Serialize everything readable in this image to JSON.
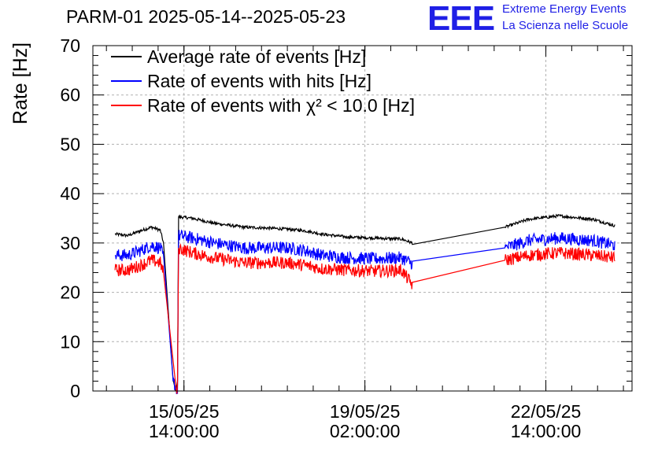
{
  "header": {
    "title": "PARM-01 2025-05-14--2025-05-23",
    "logo_text": "EEE",
    "logo_line1": "Extreme Energy Events",
    "logo_line2": "La Scienza nelle Scuole"
  },
  "colors": {
    "average": "#000000",
    "hits": "#0000ff",
    "chi2": "#ff0000",
    "grid": "#b0b0b0",
    "logo": "#1f1fe6"
  },
  "chart_data": {
    "type": "line",
    "ylabel": "Rate [Hz]",
    "xlabel": "",
    "ylim": [
      0,
      70
    ],
    "xlim": [
      "2025-05-13T19:43:00",
      "2025-05-24T06:00:00"
    ],
    "grid": true,
    "legend_position": "top-left",
    "y_ticks": [
      0,
      10,
      20,
      30,
      40,
      50,
      60,
      70
    ],
    "x_ticks": [
      {
        "x": "2025-05-15T14:00:00",
        "line1": "15/05/25",
        "line2": "14:00:00"
      },
      {
        "x": "2025-05-19T02:00:00",
        "line1": "19/05/25",
        "line2": "02:00:00"
      },
      {
        "x": "2025-05-22T14:00:00",
        "line1": "22/05/25",
        "line2": "14:00:00"
      }
    ],
    "series": [
      {
        "name": "Average rate of events [Hz]",
        "color_key": "average",
        "noise": 0.3,
        "x": [
          "2025-05-14T06:00:00",
          "2025-05-14T12:00:00",
          "2025-05-14T18:00:00",
          "2025-05-14T23:00:00",
          "2025-05-15T03:00:00",
          "2025-05-15T04:30:00",
          "2025-05-15T09:00:00",
          "2025-05-15T10:15:00",
          "2025-05-15T11:00:00",
          "2025-05-15T11:30:00",
          "2025-05-15T18:00:00",
          "2025-05-16T04:00:00",
          "2025-05-16T18:00:00",
          "2025-05-17T06:00:00",
          "2025-05-17T14:00:00",
          "2025-05-17T22:00:00",
          "2025-05-18T06:00:00",
          "2025-05-18T18:00:00",
          "2025-05-19T06:00:00",
          "2025-05-19T19:00:00",
          "2025-05-20T00:00:00",
          "2025-05-21T19:00:00",
          "2025-05-22T06:00:00",
          "2025-05-22T20:00:00",
          "2025-05-23T12:00:00",
          "2025-05-23T22:00:00"
        ],
        "y": [
          31.8,
          31.5,
          32.5,
          33.2,
          32.6,
          30.0,
          2.0,
          0,
          2.0,
          35.3,
          35.0,
          34.0,
          33.2,
          33.0,
          32.8,
          32.5,
          31.8,
          31.2,
          31.0,
          30.8,
          30.0,
          33.2,
          34.8,
          35.5,
          34.8,
          33.5
        ]
      },
      {
        "name": "Rate of events with hits [Hz]",
        "color_key": "hits",
        "noise": 1.3,
        "x": [
          "2025-05-14T06:00:00",
          "2025-05-14T12:00:00",
          "2025-05-14T18:00:00",
          "2025-05-14T23:00:00",
          "2025-05-15T03:00:00",
          "2025-05-15T04:30:00",
          "2025-05-15T09:00:00",
          "2025-05-15T11:00:00",
          "2025-05-15T11:30:00",
          "2025-05-15T18:00:00",
          "2025-05-16T04:00:00",
          "2025-05-16T18:00:00",
          "2025-05-17T06:00:00",
          "2025-05-17T14:00:00",
          "2025-05-17T22:00:00",
          "2025-05-18T06:00:00",
          "2025-05-18T18:00:00",
          "2025-05-19T06:00:00",
          "2025-05-19T19:00:00",
          "2025-05-20T00:00:00",
          "2025-05-21T19:00:00",
          "2025-05-22T06:00:00",
          "2025-05-22T20:00:00",
          "2025-05-23T12:00:00",
          "2025-05-23T22:00:00"
        ],
        "y": [
          27.5,
          27.5,
          28.5,
          29.5,
          29.0,
          27.0,
          2.0,
          0,
          31.5,
          31.0,
          30.0,
          29.0,
          29.0,
          29.0,
          28.5,
          27.5,
          27.0,
          26.8,
          27.0,
          25.8,
          29.0,
          30.5,
          31.0,
          30.5,
          29.5
        ]
      },
      {
        "name": "Rate of events with χ² < 10.0 [Hz]",
        "color_key": "chi2",
        "noise": 1.3,
        "x": [
          "2025-05-14T06:00:00",
          "2025-05-14T12:00:00",
          "2025-05-14T18:00:00",
          "2025-05-14T23:00:00",
          "2025-05-15T03:00:00",
          "2025-05-15T04:30:00",
          "2025-05-15T10:30:00",
          "2025-05-15T11:00:00",
          "2025-05-15T11:30:00",
          "2025-05-15T18:00:00",
          "2025-05-16T04:00:00",
          "2025-05-16T18:00:00",
          "2025-05-17T06:00:00",
          "2025-05-17T14:00:00",
          "2025-05-17T22:00:00",
          "2025-05-18T06:00:00",
          "2025-05-18T18:00:00",
          "2025-05-19T06:00:00",
          "2025-05-19T19:00:00",
          "2025-05-20T00:00:00",
          "2025-05-21T19:00:00",
          "2025-05-22T06:00:00",
          "2025-05-22T20:00:00",
          "2025-05-23T12:00:00",
          "2025-05-23T22:00:00"
        ],
        "y": [
          24.5,
          24.5,
          25.5,
          26.5,
          26.0,
          24.0,
          0,
          0,
          29.0,
          28.0,
          27.0,
          26.0,
          26.0,
          26.0,
          25.5,
          24.8,
          24.5,
          24.3,
          24.5,
          21.5,
          26.5,
          27.5,
          28.0,
          27.5,
          27.0
        ]
      }
    ]
  }
}
